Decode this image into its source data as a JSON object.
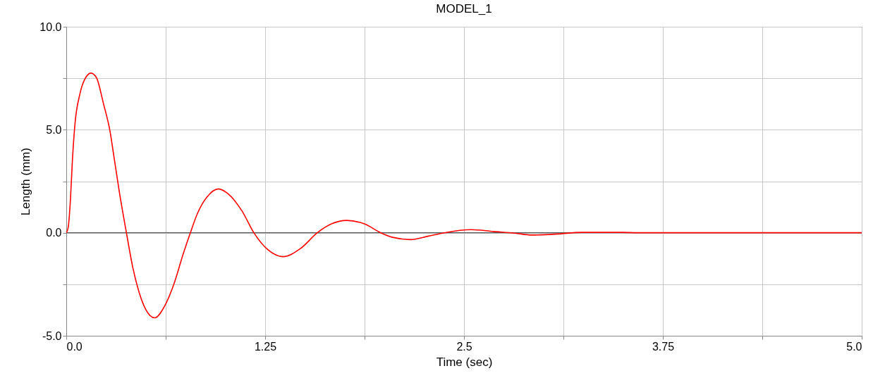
{
  "chart_data": {
    "type": "line",
    "title": "MODEL_1",
    "xlabel": "Time (sec)",
    "ylabel": "Length (mm)",
    "xlim": [
      0,
      5
    ],
    "ylim": [
      -5,
      10
    ],
    "xticks": [
      {
        "value": 0,
        "label": "0.0"
      },
      {
        "value": 0.625,
        "label": null
      },
      1.25,
      {
        "value": 1.875,
        "label": null
      },
      2.5,
      {
        "value": 3.125,
        "label": null
      },
      3.75,
      {
        "value": 4.375,
        "label": null
      },
      {
        "value": 5,
        "label": "5.0"
      }
    ],
    "yticks": [
      {
        "value": -5,
        "label": "-5.0"
      },
      {
        "value": -2.5,
        "label": null
      },
      {
        "value": 0,
        "label": "0.0"
      },
      {
        "value": 2.5,
        "label": null
      },
      {
        "value": 5,
        "label": "5.0"
      },
      {
        "value": 7.5,
        "label": null
      },
      {
        "value": 10,
        "label": "10.0"
      }
    ],
    "grid": true,
    "marker": "none",
    "line_style": "solid",
    "ref_lines": [
      {
        "axis": "y",
        "value": 0,
        "color": "#555555"
      }
    ],
    "x": [
      0,
      0.012,
      0.027,
      0.038,
      0.053,
      0.086,
      0.115,
      0.155,
      0.189,
      0.233,
      0.275,
      0.3,
      0.334,
      0.378,
      0.418,
      0.455,
      0.5,
      0.556,
      0.618,
      0.677,
      0.736,
      0.78,
      0.824,
      0.884,
      0.957,
      1.016,
      1.105,
      1.179,
      1.268,
      1.362,
      1.473,
      1.578,
      1.667,
      1.763,
      1.874,
      1.977,
      2.051,
      2.162,
      2.273,
      2.376,
      2.546,
      2.686,
      2.819,
      2.925,
      3.089,
      3.236,
      3.5,
      3.6,
      4,
      4.5,
      5
    ],
    "series": [
      {
        "color": "#ff0000",
        "values": [
          0,
          0.26,
          1.73,
          3.44,
          5.15,
          6.75,
          7.43,
          7.75,
          7.54,
          6.29,
          4.92,
          3.67,
          1.96,
          0,
          -1.68,
          -2.82,
          -3.73,
          -4.13,
          -3.56,
          -2.48,
          -1.0,
          0,
          0.93,
          1.73,
          2.13,
          1.9,
          1.05,
          0,
          -0.83,
          -1.16,
          -0.76,
          0,
          0.43,
          0.6,
          0.43,
          0,
          -0.22,
          -0.33,
          -0.17,
          0,
          0.15,
          0.06,
          -0.02,
          -0.11,
          -0.06,
          0.02,
          0.02,
          0,
          0,
          0,
          0
        ]
      }
    ]
  }
}
